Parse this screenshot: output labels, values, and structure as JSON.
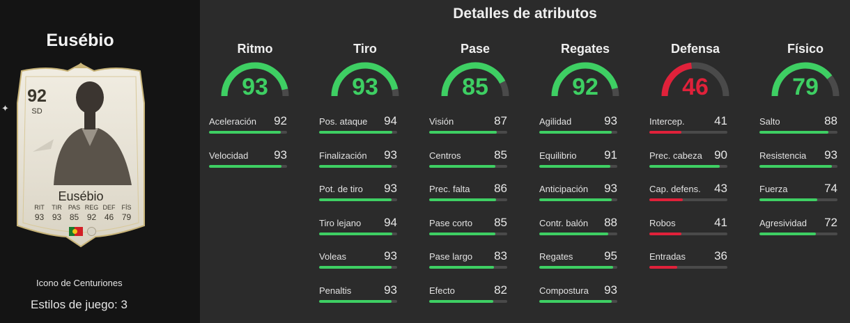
{
  "player": {
    "name": "Eusébio",
    "card_type": "Icono de Centuriones",
    "play_styles": "Estilos de juego: 3"
  },
  "card": {
    "rating": "92",
    "position": "SD",
    "name": "Eusébio",
    "stats": [
      {
        "label": "RIT",
        "value": "93"
      },
      {
        "label": "TIR",
        "value": "93"
      },
      {
        "label": "PAS",
        "value": "85"
      },
      {
        "label": "REG",
        "value": "92"
      },
      {
        "label": "DEF",
        "value": "46"
      },
      {
        "label": "FÍS",
        "value": "79"
      }
    ]
  },
  "section_title": "Detalles de atributos",
  "colors": {
    "high": "#3ecf63",
    "low": "#e0213a",
    "track": "#4a4a4a"
  },
  "categories": [
    {
      "name": "Ritmo",
      "value": 93,
      "attributes": [
        {
          "name": "Aceleración",
          "value": 92
        },
        {
          "name": "Velocidad",
          "value": 93
        }
      ]
    },
    {
      "name": "Tiro",
      "value": 93,
      "attributes": [
        {
          "name": "Pos. ataque",
          "value": 94
        },
        {
          "name": "Finalización",
          "value": 93
        },
        {
          "name": "Pot. de tiro",
          "value": 93
        },
        {
          "name": "Tiro lejano",
          "value": 94
        },
        {
          "name": "Voleas",
          "value": 93
        },
        {
          "name": "Penaltis",
          "value": 93
        }
      ]
    },
    {
      "name": "Pase",
      "value": 85,
      "attributes": [
        {
          "name": "Visión",
          "value": 87
        },
        {
          "name": "Centros",
          "value": 85
        },
        {
          "name": "Prec. falta",
          "value": 86
        },
        {
          "name": "Pase corto",
          "value": 85
        },
        {
          "name": "Pase largo",
          "value": 83
        },
        {
          "name": "Efecto",
          "value": 82
        }
      ]
    },
    {
      "name": "Regates",
      "value": 92,
      "attributes": [
        {
          "name": "Agilidad",
          "value": 93
        },
        {
          "name": "Equilibrio",
          "value": 91
        },
        {
          "name": "Anticipación",
          "value": 93
        },
        {
          "name": "Contr. balón",
          "value": 88
        },
        {
          "name": "Regates",
          "value": 95
        },
        {
          "name": "Compostura",
          "value": 93
        }
      ]
    },
    {
      "name": "Defensa",
      "value": 46,
      "attributes": [
        {
          "name": "Intercep.",
          "value": 41
        },
        {
          "name": "Prec. cabeza",
          "value": 90
        },
        {
          "name": "Cap. defens.",
          "value": 43
        },
        {
          "name": "Robos",
          "value": 41
        },
        {
          "name": "Entradas",
          "value": 36
        }
      ]
    },
    {
      "name": "Físico",
      "value": 79,
      "attributes": [
        {
          "name": "Salto",
          "value": 88
        },
        {
          "name": "Resistencia",
          "value": 93
        },
        {
          "name": "Fuerza",
          "value": 74
        },
        {
          "name": "Agresividad",
          "value": 72
        }
      ]
    }
  ]
}
